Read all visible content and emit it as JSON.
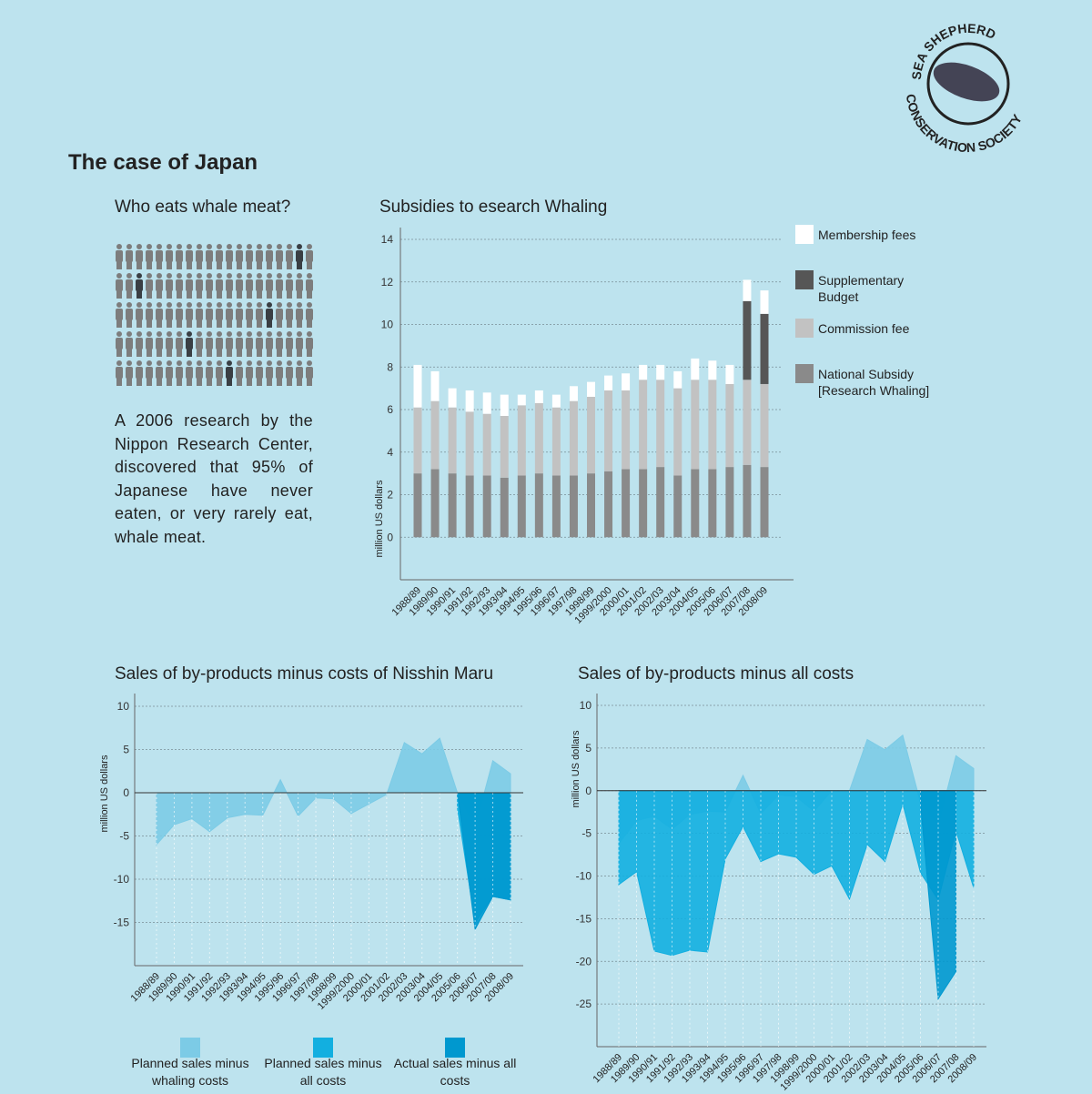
{
  "header": {
    "title": "The case of Japan"
  },
  "logo": {
    "top": "SEA SHEPHERD",
    "bottom": "CONSERVATION SOCIETY"
  },
  "pictogram": {
    "title": "Who eats whale meat?",
    "text": "A 2006 research by the Nippon Research Center, discovered that 95% of Japanese have never eaten, or very rarely eat, whale meat."
  },
  "chart_data": [
    {
      "type": "bar",
      "stacked": true,
      "title": "Subsidies to esearch Whaling",
      "y_label": "million US dollars",
      "categories": [
        "1988/89",
        "1989/90",
        "1990/91",
        "1991/92",
        "1992/93",
        "1993/94",
        "1994/95",
        "1995/96",
        "1996/97",
        "1997/98",
        "1998/99",
        "1999/2000",
        "2000/01",
        "2001/02",
        "2002/03",
        "2003/04",
        "2004/05",
        "2005/06",
        "2006/07",
        "2007/08",
        "2008/09"
      ],
      "series": [
        {
          "name": "National Subsidy [Research Whaling]",
          "color": "#8a8a8a",
          "values": [
            3.0,
            3.2,
            3.0,
            2.9,
            2.9,
            2.8,
            2.9,
            3.0,
            2.9,
            2.9,
            3.0,
            3.1,
            3.2,
            3.2,
            3.3,
            2.9,
            3.2,
            3.2,
            3.3,
            3.4,
            3.3
          ]
        },
        {
          "name": "Commission fee",
          "color": "#c2c2c2",
          "values": [
            3.1,
            3.2,
            3.1,
            3.0,
            2.9,
            2.9,
            3.3,
            3.3,
            3.2,
            3.5,
            3.6,
            3.8,
            3.7,
            4.2,
            4.1,
            4.1,
            4.2,
            4.2,
            3.9,
            4.0,
            3.9
          ]
        },
        {
          "name": "Supplementary Budget",
          "color": "#565656",
          "values": [
            0,
            0,
            0,
            0,
            0,
            0,
            0,
            0,
            0,
            0,
            0,
            0,
            0,
            0,
            0,
            0,
            0,
            0,
            0,
            3.7,
            3.3
          ]
        },
        {
          "name": "Membership fees",
          "color": "#ffffff",
          "values": [
            2.0,
            1.4,
            0.9,
            1.0,
            1.0,
            1.0,
            0.5,
            0.6,
            0.6,
            0.7,
            0.7,
            0.7,
            0.8,
            0.7,
            0.7,
            0.8,
            1.0,
            0.9,
            0.9,
            1.0,
            1.1
          ]
        }
      ],
      "ylim": [
        -2,
        14
      ],
      "yticks": [
        0,
        2,
        4,
        6,
        8,
        10,
        12,
        14
      ],
      "grid": true,
      "legend": "right"
    },
    {
      "type": "area",
      "title": "Sales of by-products minus costs of Nisshin Maru",
      "y_label": "million US dollars",
      "categories": [
        "1988/89",
        "1989/90",
        "1990/91",
        "1991/92",
        "1992/93",
        "1993/94",
        "1994/95",
        "1995/96",
        "1996/97",
        "1997/98",
        "1998/99",
        "1999/2000",
        "2000/01",
        "2001/02",
        "2002/03",
        "2003/04",
        "2004/05",
        "2005/06",
        "2006/07",
        "2007/08",
        "2008/09"
      ],
      "series": [
        {
          "name": "Planned sales minus whaling costs",
          "color": "#7ccbe6",
          "values": [
            -6.0,
            -3.7,
            -3.0,
            -4.5,
            -2.9,
            -2.5,
            -2.6,
            1.5,
            -2.7,
            -0.6,
            -0.7,
            -2.4,
            -1.3,
            -0.2,
            5.8,
            4.5,
            6.3,
            0,
            -4.0,
            3.7,
            2.2
          ]
        },
        {
          "name": "Planned sales minus all costs",
          "color": "#12afe0",
          "values": [
            null,
            null,
            null,
            null,
            null,
            null,
            null,
            null,
            null,
            null,
            null,
            null,
            null,
            null,
            null,
            null,
            null,
            -1.8,
            -15.0,
            -12.0,
            -12.4
          ]
        },
        {
          "name": "Actual sales minus all costs",
          "color": "#0098cf",
          "values": [
            null,
            null,
            null,
            null,
            null,
            null,
            null,
            null,
            null,
            null,
            null,
            null,
            null,
            null,
            null,
            null,
            null,
            0,
            -15.8,
            -12.0,
            -12.4
          ]
        }
      ],
      "ylim": [
        -20,
        10
      ],
      "yticks": [
        10,
        5,
        0,
        -5,
        -10,
        -15
      ],
      "grid": true,
      "legend": "bottom"
    },
    {
      "type": "area",
      "title": "Sales of by-products minus all costs",
      "y_label": "million US dollars",
      "categories": [
        "1988/89",
        "1989/90",
        "1990/91",
        "1991/92",
        "1992/93",
        "1993/94",
        "1994/95",
        "1995/96",
        "1996/97",
        "1997/98",
        "1998/99",
        "1999/2000",
        "2000/01",
        "2001/02",
        "2002/03",
        "2003/04",
        "2004/05",
        "2005/06",
        "2006/07",
        "2007/08",
        "2008/09"
      ],
      "series": [
        {
          "color": "#7ccbe6",
          "values": [
            -6.2,
            -3.5,
            -3.0,
            -4.5,
            -2.8,
            -2.4,
            -2.5,
            1.8,
            -2.7,
            -0.5,
            -0.7,
            -2.4,
            0,
            0,
            6.0,
            4.8,
            6.5,
            -1.4,
            -4.0,
            4.1,
            2.6
          ]
        },
        {
          "color": "#12afe0",
          "values": [
            -11.0,
            -9.5,
            -18.8,
            -19.3,
            -18.7,
            -18.9,
            -8.0,
            -4.2,
            -8.3,
            -7.4,
            -7.8,
            -9.8,
            -8.8,
            -12.7,
            -6.3,
            -8.3,
            -1.5,
            -9.6,
            -12.8,
            -4.7,
            -11.4
          ]
        },
        {
          "color": "#0098cf",
          "values": [
            null,
            null,
            null,
            null,
            null,
            null,
            null,
            null,
            null,
            null,
            null,
            null,
            null,
            null,
            null,
            null,
            null,
            -1.5,
            -24.4,
            -21.2,
            null
          ]
        }
      ],
      "ylim": [
        -30,
        10
      ],
      "yticks": [
        10,
        5,
        0,
        -5,
        -10,
        -15,
        -20,
        -25
      ],
      "grid": true
    }
  ]
}
